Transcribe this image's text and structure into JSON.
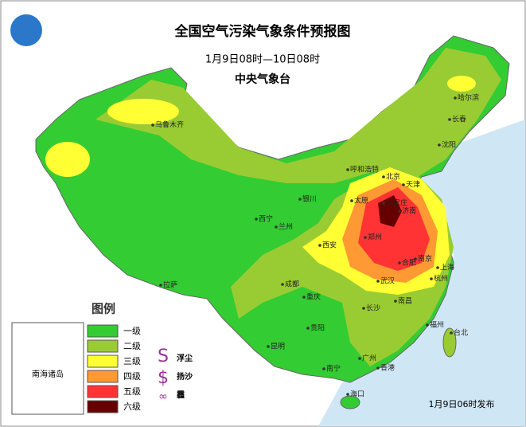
{
  "header": {
    "title": "全国空气污染气象条件预报图",
    "period": "1月9日08时—10日08时",
    "issuer": "中央气象台"
  },
  "legend": {
    "title": "图例",
    "levels": [
      {
        "label": "一级",
        "color": "#33cc33"
      },
      {
        "label": "二级",
        "color": "#99cc33"
      },
      {
        "label": "三级",
        "color": "#ffff33"
      },
      {
        "label": "四级",
        "color": "#ff9933"
      },
      {
        "label": "五级",
        "color": "#ff3333"
      },
      {
        "label": "六级",
        "color": "#660000"
      }
    ],
    "symbols": [
      "浮尘",
      "扬沙",
      "霾"
    ]
  },
  "inset": {
    "label": "南海诸岛"
  },
  "cities": [
    "乌鲁木齐",
    "哈尔滨",
    "长春",
    "沈阳",
    "北京",
    "天津",
    "石家庄",
    "济南",
    "太原",
    "呼和浩特",
    "银川",
    "西宁",
    "兰州",
    "西安",
    "郑州",
    "合肥",
    "南京",
    "上海",
    "杭州",
    "武汉",
    "成都",
    "重庆",
    "拉萨",
    "长沙",
    "南昌",
    "福州",
    "台北",
    "贵阳",
    "昆明",
    "南宁",
    "广州",
    "香港",
    "海口"
  ],
  "footer": "1月9日06时发布"
}
